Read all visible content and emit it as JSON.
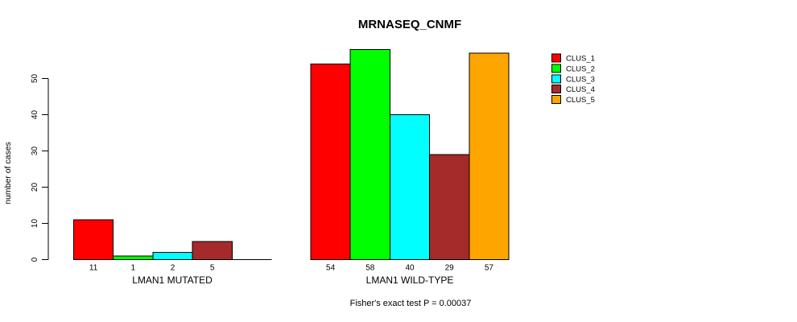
{
  "chart_data": {
    "type": "bar",
    "title": "MRNASEQ_CNMF",
    "ylabel": "number of cases",
    "footer": "Fisher's exact test P = 0.00037",
    "ylim": [
      0,
      58
    ],
    "yticks": [
      0,
      10,
      20,
      30,
      40,
      50
    ],
    "grid": false,
    "legend_position": "top-right",
    "series": [
      {
        "name": "CLUS_1",
        "color": "#ff0000"
      },
      {
        "name": "CLUS_2",
        "color": "#00ff00"
      },
      {
        "name": "CLUS_3",
        "color": "#00ffff"
      },
      {
        "name": "CLUS_4",
        "color": "#a52a2a"
      },
      {
        "name": "CLUS_5",
        "color": "#ffa500"
      }
    ],
    "groups": [
      {
        "label": "LMAN1 MUTATED",
        "values": [
          11,
          1,
          2,
          5,
          0
        ]
      },
      {
        "label": "LMAN1 WILD-TYPE",
        "values": [
          54,
          58,
          40,
          29,
          57
        ]
      }
    ],
    "bar_value_labels": {
      "mutated": [
        "11",
        "1",
        "2",
        "5"
      ],
      "wild_type": [
        "54",
        "58",
        "40",
        "29",
        "57"
      ]
    },
    "axis_color": "#000000",
    "bar_border_color": "#000000",
    "background_color": "#ffffff"
  }
}
